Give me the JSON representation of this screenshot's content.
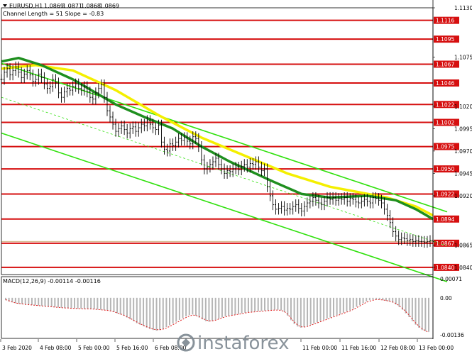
{
  "chart_data": {
    "type": "line",
    "symbol": "EURUSD,H1",
    "ohlc": {
      "open": "1.0869",
      "high": "1.0871",
      "low": "1.0868",
      "close": "1.0869"
    },
    "channel_info": "Channel Length = 51 Slope = -0.83",
    "price_axis": {
      "min": 1.0832,
      "max": 1.113,
      "ticks": [
        "1.1130",
        "1.1075",
        "1.1020",
        "1.0995",
        "1.0970",
        "1.0945",
        "1.0920",
        "1.0865",
        "1.0840"
      ]
    },
    "levels": [
      {
        "value": 1.1116,
        "label": "1.1116"
      },
      {
        "value": 1.1095,
        "label": "1.1095"
      },
      {
        "value": 1.1067,
        "label": "1.1067"
      },
      {
        "value": 1.1046,
        "label": "1.1046"
      },
      {
        "value": 1.1022,
        "label": "1.1022"
      },
      {
        "value": 1.1002,
        "label": "1.1002"
      },
      {
        "value": 1.0975,
        "label": "1.0975"
      },
      {
        "value": 1.095,
        "label": "1.0950"
      },
      {
        "value": 1.0922,
        "label": "1.0922"
      },
      {
        "value": 1.0894,
        "label": "1.0894"
      },
      {
        "value": 1.0867,
        "label": "1.0867"
      },
      {
        "value": 1.084,
        "label": "1.0840"
      }
    ],
    "current_price": 1.0869,
    "x_labels": [
      "3 Feb 2020",
      "4 Feb 08:00",
      "5 Feb 00:00",
      "5 Feb 16:00",
      "6 Feb 08:00",
      "11 Feb 00:00",
      "11 Feb 16:00",
      "12 Feb 08:00",
      "13 Feb 00:00"
    ],
    "bars": 152,
    "price_series": [
      1.105,
      1.1058,
      1.1062,
      1.1055,
      1.106,
      1.1064,
      1.1058,
      1.1052,
      1.1056,
      1.106,
      1.1055,
      1.1048,
      1.105,
      1.1056,
      1.1052,
      1.1045,
      1.104,
      1.1042,
      1.105,
      1.1046,
      1.1035,
      1.103,
      1.1036,
      1.104,
      1.1038,
      1.1042,
      1.1045,
      1.104,
      1.1038,
      1.1042,
      1.1036,
      1.103,
      1.1028,
      1.1035,
      1.104,
      1.1044,
      1.103,
      1.1015,
      1.1008,
      1.1,
      1.0992,
      1.0995,
      1.0998,
      1.0994,
      1.099,
      1.0995,
      1.0997,
      1.0992,
      1.0996,
      1.1,
      1.0998,
      1.1004,
      1.1,
      1.0996,
      1.0994,
      1.0999,
      1.098,
      1.0972,
      1.097,
      1.0978,
      1.0976,
      1.098,
      1.0984,
      1.0982,
      1.0985,
      1.0981,
      1.0978,
      1.0986,
      1.0984,
      1.0975,
      1.096,
      1.095,
      1.0952,
      1.0955,
      1.0958,
      1.0962,
      1.0955,
      1.095,
      1.0945,
      1.0948,
      1.0947,
      1.095,
      1.0952,
      1.0949,
      1.0953,
      1.0955,
      1.0952,
      1.0956,
      1.0955,
      1.0958,
      1.0952,
      1.0948,
      1.095,
      1.093,
      1.092,
      1.091,
      1.0905,
      1.0906,
      1.0908,
      1.0904,
      1.0906,
      1.0905,
      1.0908,
      1.091,
      1.0906,
      1.0903,
      1.0908,
      1.0912,
      1.0914,
      1.0918,
      1.0915,
      1.0912,
      1.091,
      1.0914,
      1.0918,
      1.0916,
      1.0918,
      1.0915,
      1.0917,
      1.0916,
      1.0918,
      1.0914,
      1.0917,
      1.0916,
      1.0913,
      1.0912,
      1.0914,
      1.0916,
      1.0914,
      1.0912,
      1.0918,
      1.0917,
      1.0915,
      1.0912,
      1.0905,
      1.0898,
      1.089,
      1.088,
      1.0875,
      1.0871,
      1.0873,
      1.0872,
      1.087,
      1.0871,
      1.0869,
      1.087,
      1.0869,
      1.0869,
      1.0868,
      1.0869,
      1.087,
      1.0869
    ],
    "ma_slow": {
      "color": "#f4ef00",
      "points": [
        [
          0,
          1.1062
        ],
        [
          12,
          1.1066
        ],
        [
          25,
          1.106
        ],
        [
          40,
          1.1038
        ],
        [
          55,
          1.101
        ],
        [
          70,
          1.0985
        ],
        [
          85,
          1.0965
        ],
        [
          100,
          1.0945
        ],
        [
          115,
          1.093
        ],
        [
          125,
          1.0924
        ],
        [
          135,
          1.0918
        ],
        [
          145,
          1.0908
        ],
        [
          151,
          1.0898
        ]
      ]
    },
    "ma_fast": {
      "color": "#1f8f1f",
      "points": [
        [
          0,
          1.107
        ],
        [
          6,
          1.1074
        ],
        [
          14,
          1.1066
        ],
        [
          25,
          1.105
        ],
        [
          40,
          1.1022
        ],
        [
          50,
          1.1008
        ],
        [
          60,
          1.0995
        ],
        [
          70,
          1.0975
        ],
        [
          80,
          1.0958
        ],
        [
          95,
          1.0936
        ],
        [
          105,
          1.0922
        ],
        [
          115,
          1.0918
        ],
        [
          128,
          1.092
        ],
        [
          138,
          1.0915
        ],
        [
          145,
          1.0905
        ],
        [
          151,
          1.0894
        ]
      ]
    },
    "channel": {
      "color": "#2fe10c",
      "upper": [
        [
          0,
          1.1068
        ],
        [
          152,
          1.0902
        ]
      ],
      "mid": [
        [
          0,
          1.103
        ],
        [
          152,
          1.0864
        ]
      ],
      "lower": [
        [
          0,
          1.099
        ],
        [
          152,
          1.0824
        ]
      ]
    },
    "macd": {
      "label": "MACD(12,26,9) -0.00114 -0.00116",
      "axis": [
        "0.00071",
        "0.00",
        "-0.00136"
      ],
      "range": [
        -0.00136,
        0.00071
      ],
      "histogram": [
        -8e-05,
        -0.00012,
        -0.00015,
        -0.00018,
        -0.0002,
        -0.00021,
        -0.00022,
        -0.00023,
        -0.00024,
        -0.00025,
        -0.00026,
        -0.00027,
        -0.00028,
        -0.00029,
        -0.0003,
        -0.00031,
        -0.00032,
        -0.00033,
        -0.00034,
        -0.00034,
        -0.00035,
        -0.00035,
        -0.00036,
        -0.00036,
        -0.00037,
        -0.00037,
        -0.00037,
        -0.00038,
        -0.00039,
        -0.0004,
        -0.00041,
        -0.00042,
        -0.00045,
        -0.00048,
        -0.00052,
        -0.00056,
        -0.0006,
        -0.00066,
        -0.00072,
        -0.00078,
        -0.00085,
        -0.0009,
        -0.00095,
        -0.001,
        -0.00105,
        -0.00108,
        -0.0011,
        -0.00108,
        -0.00104,
        -0.00098,
        -0.00092,
        -0.00086,
        -0.0008,
        -0.00074,
        -0.00068,
        -0.00062,
        -0.00058,
        -0.00056,
        -0.0006,
        -0.00066,
        -0.00072,
        -0.00078,
        -0.0008,
        -0.00078,
        -0.00074,
        -0.0007,
        -0.00066,
        -0.00062,
        -0.0006,
        -0.00058,
        -0.00056,
        -0.00054,
        -0.00052,
        -0.0005,
        -0.00048,
        -0.00047,
        -0.00046,
        -0.00045,
        -0.00044,
        -0.00043,
        -0.00042,
        -0.00041,
        -0.0004,
        -0.0004,
        -0.00042,
        -0.00048,
        -0.0006,
        -0.00075,
        -0.00088,
        -0.00096,
        -0.001,
        -0.00098,
        -0.00094,
        -0.0009,
        -0.00086,
        -0.00082,
        -0.00078,
        -0.00074,
        -0.0007,
        -0.00066,
        -0.00062,
        -0.00058,
        -0.00054,
        -0.0005,
        -0.00046,
        -0.00042,
        -0.00036,
        -0.0003,
        -0.00024,
        -0.00018,
        -0.00012,
        -8e-05,
        -6e-05,
        -5e-05,
        -6e-05,
        -8e-05,
        -0.0001,
        -0.00012,
        -0.00016,
        -0.00022,
        -0.0003,
        -0.0004,
        -0.00052,
        -0.00064,
        -0.00078,
        -0.0009,
        -0.001,
        -0.00108,
        -0.00112,
        -0.00114
      ],
      "signal": [
        -6e-05,
        -0.0001,
        -0.00014,
        -0.00017,
        -0.00019,
        -0.0002,
        -0.00022,
        -0.00023,
        -0.00024,
        -0.00025,
        -0.00026,
        -0.00027,
        -0.00028,
        -0.00029,
        -0.0003,
        -0.00031,
        -0.00032,
        -0.00033,
        -0.00034,
        -0.00034,
        -0.00035,
        -0.00035,
        -0.00036,
        -0.00036,
        -0.00037,
        -0.00037,
        -0.00037,
        -0.00038,
        -0.00039,
        -0.0004,
        -0.00041,
        -0.00042,
        -0.00044,
        -0.00047,
        -0.0005,
        -0.00054,
        -0.00058,
        -0.00063,
        -0.00069,
        -0.00075,
        -0.00081,
        -0.00087,
        -0.00092,
        -0.00097,
        -0.00101,
        -0.00105,
        -0.00107,
        -0.00107,
        -0.00105,
        -0.00101,
        -0.00096,
        -0.0009,
        -0.00084,
        -0.00078,
        -0.00072,
        -0.00066,
        -0.00061,
        -0.00058,
        -0.00059,
        -0.00063,
        -0.00069,
        -0.00074,
        -0.00077,
        -0.00077,
        -0.00075,
        -0.00071,
        -0.00067,
        -0.00064,
        -0.00061,
        -0.00059,
        -0.00057,
        -0.00055,
        -0.00053,
        -0.00051,
        -0.00049,
        -0.00048,
        -0.00047,
        -0.00046,
        -0.00045,
        -0.00044,
        -0.00043,
        -0.00042,
        -0.00041,
        -0.00041,
        -0.00042,
        -0.00046,
        -0.00055,
        -0.00068,
        -0.00081,
        -0.00091,
        -0.00097,
        -0.00098,
        -0.00096,
        -0.00092,
        -0.00088,
        -0.00084,
        -0.0008,
        -0.00076,
        -0.00072,
        -0.00068,
        -0.00064,
        -0.0006,
        -0.00056,
        -0.00052,
        -0.00048,
        -0.00044,
        -0.00039,
        -0.00033,
        -0.00027,
        -0.00021,
        -0.00015,
        -0.00011,
        -8e-05,
        -6e-05,
        -6e-05,
        -7e-05,
        -9e-05,
        -0.00011,
        -0.00014,
        -0.00019,
        -0.00026,
        -0.00035,
        -0.00046,
        -0.00058,
        -0.00071,
        -0.00084,
        -0.00095,
        -0.00104,
        -0.0011,
        -0.00116
      ]
    }
  },
  "watermark": {
    "text": "instaforex"
  }
}
